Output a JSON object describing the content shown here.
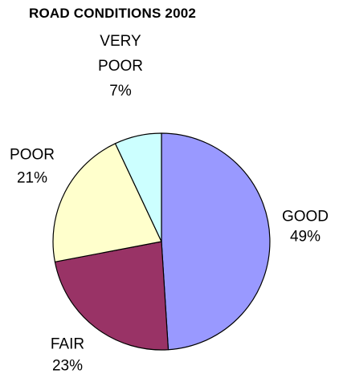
{
  "chart_data": {
    "type": "pie",
    "title": "ROAD CONDITIONS 2002",
    "slices": [
      {
        "label": "GOOD",
        "pct_label": "49%",
        "value": 49,
        "color": "#9999ff"
      },
      {
        "label": "FAIR",
        "pct_label": "23%",
        "value": 23,
        "color": "#993366"
      },
      {
        "label": "POOR",
        "pct_label": "21%",
        "value": 21,
        "color": "#ffffcc"
      },
      {
        "label": "VERY POOR",
        "pct_label": "7%",
        "value": 7,
        "color": "#ccffff"
      }
    ],
    "legend": "none",
    "start_angle": "12 o'clock",
    "direction": "clockwise"
  }
}
